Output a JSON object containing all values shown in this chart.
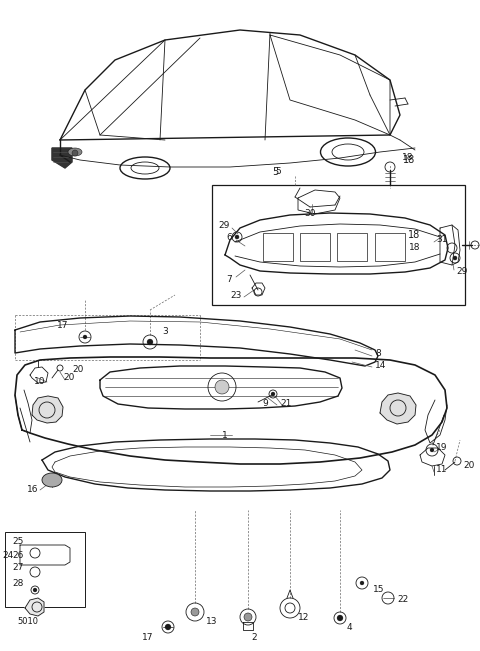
{
  "bg_color": "#ffffff",
  "line_color": "#1a1a1a",
  "fig_width": 4.8,
  "fig_height": 6.51,
  "dpi": 100
}
